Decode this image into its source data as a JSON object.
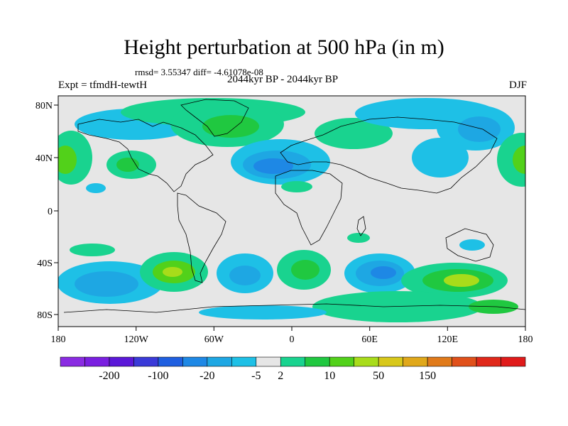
{
  "title": "Height perturbation at 500 hPa (in m)",
  "stats": "rmsd= 3.55347 diff= -4.61078e-08",
  "experiment": "Expt = tfmdH-tewtH",
  "period": "2044kyr BP - 2044kyr BP",
  "season": "DJF",
  "colors": {
    "background": "#e6e6e6",
    "coast": "#000000",
    "levels": [
      "#8a2be2",
      "#7a1fe0",
      "#5b18d8",
      "#3a3ad8",
      "#1f5fe0",
      "#1e88e5",
      "#1ea7e3",
      "#1ec0e6",
      "#e6e6e6",
      "#19d38f",
      "#20c840",
      "#52d11a",
      "#a8dc1a",
      "#d8c81a",
      "#e0a81a",
      "#e07a1a",
      "#e0501a",
      "#e0281a",
      "#e01a1a"
    ]
  },
  "colorbar": {
    "labels": [
      "-200",
      "-100",
      "-20",
      "-5",
      "2",
      "10",
      "50",
      "150"
    ]
  },
  "axes": {
    "lon_labels": [
      "180",
      "120W",
      "60W",
      "0",
      "60E",
      "120E",
      "180"
    ],
    "lat_labels": [
      "80N",
      "40N",
      "0",
      "40S",
      "80S"
    ]
  }
}
